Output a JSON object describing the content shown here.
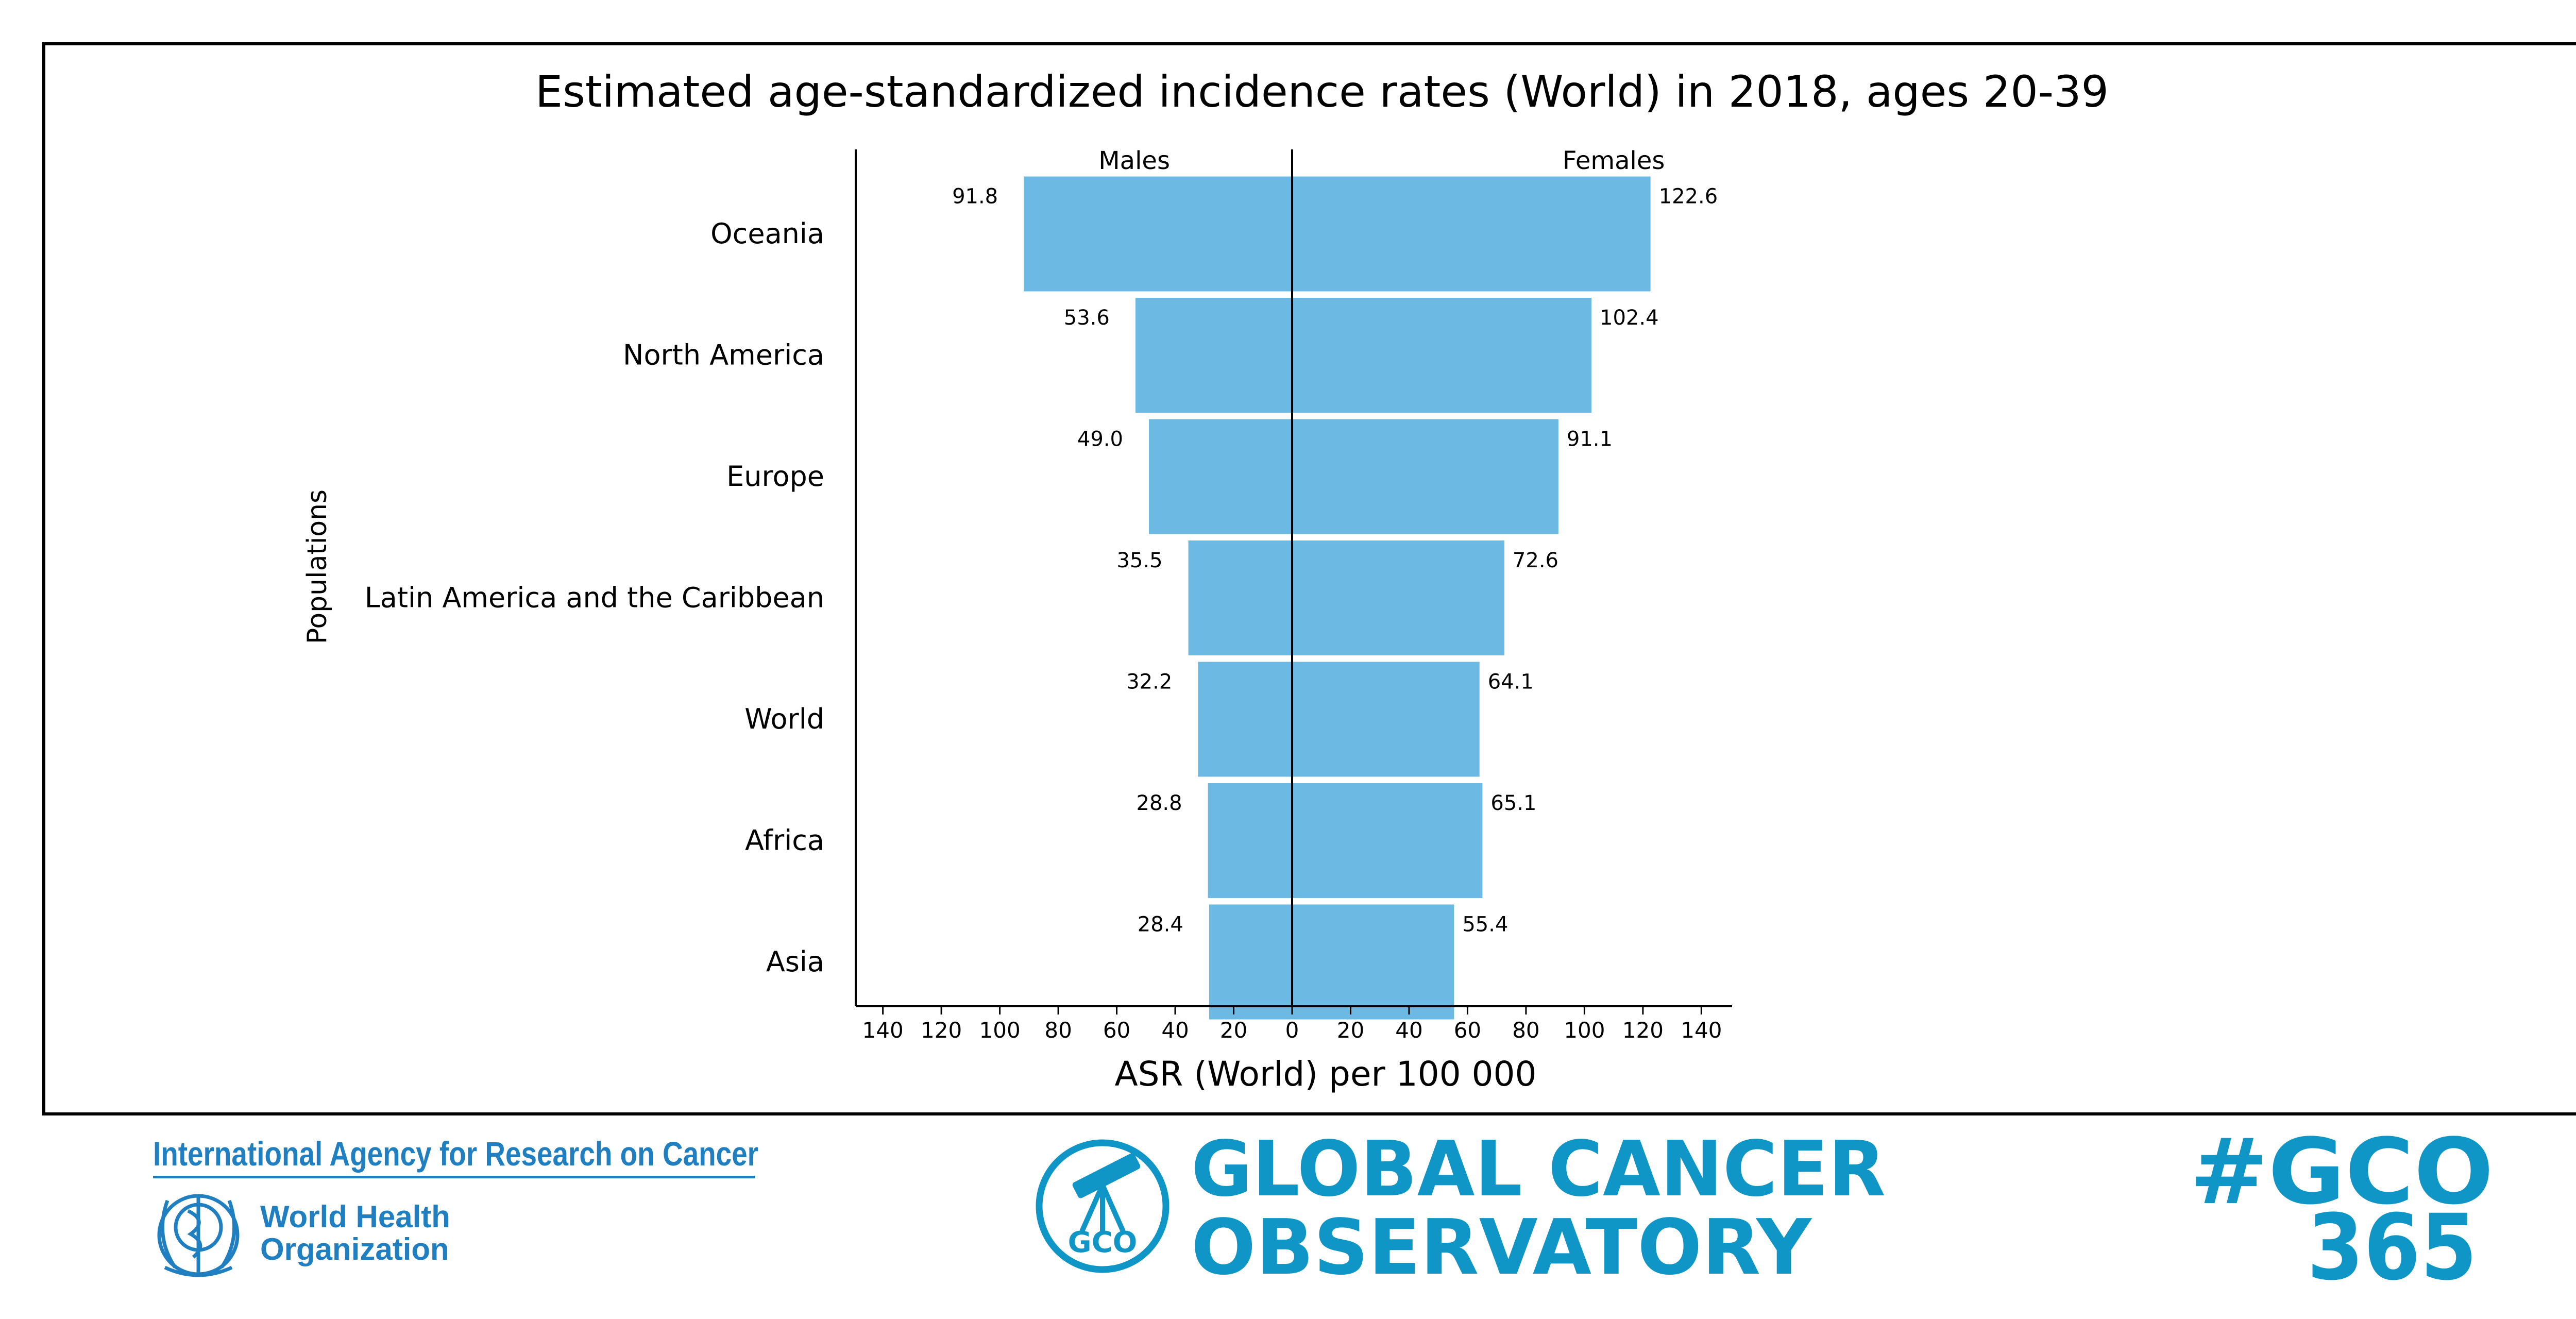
{
  "chart_data": {
    "type": "bar",
    "orientation": "horizontal-diverging",
    "title": "Estimated age-standardized incidence rates (World) in 2018, ages 20-39",
    "xlabel": "ASR (World) per 100 000",
    "ylabel": "Populations",
    "categories": [
      "Oceania",
      "North America",
      "Europe",
      "Latin America and the Caribbean",
      "World",
      "Africa",
      "Asia"
    ],
    "series": [
      {
        "name": "Males",
        "side": "left",
        "values": [
          91.8,
          53.6,
          49.0,
          35.5,
          32.2,
          28.8,
          28.4
        ],
        "value_labels": [
          "91.8",
          "53.6",
          "49.0",
          "35.5",
          "32.2",
          "28.8",
          "28.4"
        ]
      },
      {
        "name": "Females",
        "side": "right",
        "values": [
          122.6,
          102.4,
          91.1,
          72.6,
          64.1,
          65.1,
          55.4
        ],
        "value_labels": [
          "122.6",
          "102.4",
          "91.1",
          "72.6",
          "64.1",
          "65.1",
          "55.4"
        ]
      }
    ],
    "xlim": [
      -150,
      150
    ],
    "x_ticks": [
      -140,
      -120,
      -100,
      -80,
      -60,
      -40,
      -20,
      0,
      20,
      40,
      60,
      80,
      100,
      120,
      140
    ],
    "x_tick_labels": [
      "140",
      "120",
      "100",
      "80",
      "60",
      "40",
      "20",
      "0",
      "20",
      "40",
      "60",
      "80",
      "100",
      "120",
      "140"
    ],
    "bar_color": "#6cb9e4",
    "grid": false,
    "legend": "series names printed above each side"
  },
  "footer": {
    "iarc_text": "International Agency for Research on Cancer",
    "who_line1": "World Health",
    "who_line2": "Organization",
    "gco_badge": "GCO",
    "gco_line1": "GLOBAL CANCER",
    "gco_line2": "OBSERVATORY",
    "hashtag_line1": "#GCO",
    "hashtag_line2": "365",
    "brand_color": "#0f96c6",
    "who_color": "#1f7fc0"
  }
}
